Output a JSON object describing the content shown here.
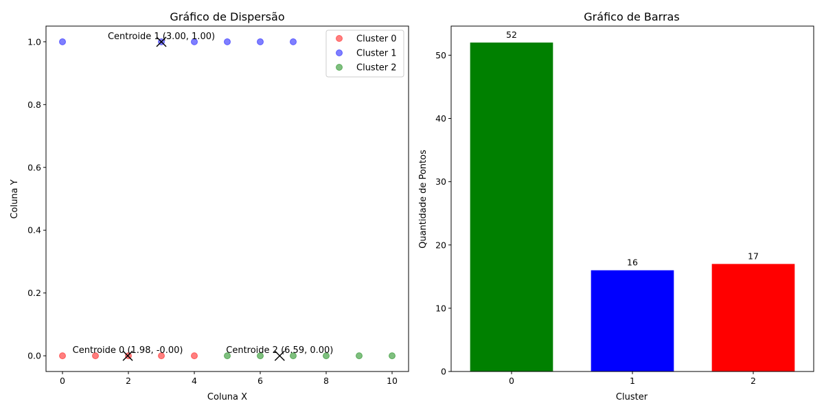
{
  "chart_data": [
    {
      "type": "scatter",
      "title": "Gráfico de Dispersão",
      "xlabel": "Coluna X",
      "ylabel": "Coluna Y",
      "xlim": [
        -0.5,
        10.5
      ],
      "ylim": [
        -0.05,
        1.05
      ],
      "xticks": [
        0,
        2,
        4,
        6,
        8,
        10
      ],
      "yticks": [
        0.0,
        0.2,
        0.4,
        0.6,
        0.8,
        1.0
      ],
      "ytick_labels": [
        "0.0",
        "0.2",
        "0.4",
        "0.6",
        "0.8",
        "1.0"
      ],
      "grid": false,
      "legend_position": "top-right",
      "series": [
        {
          "name": "Cluster 0",
          "color": "#ff0000",
          "alpha": 0.5,
          "points": [
            [
              0,
              0
            ],
            [
              1,
              0
            ],
            [
              2,
              0
            ],
            [
              3,
              0
            ],
            [
              4,
              0
            ]
          ]
        },
        {
          "name": "Cluster 1",
          "color": "#0000ff",
          "alpha": 0.5,
          "points": [
            [
              0,
              1
            ],
            [
              3,
              1
            ],
            [
              4,
              1
            ],
            [
              5,
              1
            ],
            [
              6,
              1
            ],
            [
              7,
              1
            ]
          ]
        },
        {
          "name": "Cluster 2",
          "color": "#008000",
          "alpha": 0.5,
          "points": [
            [
              5,
              0
            ],
            [
              6,
              0
            ],
            [
              7,
              0
            ],
            [
              8,
              0
            ],
            [
              9,
              0
            ],
            [
              10,
              0
            ]
          ]
        }
      ],
      "centroids": [
        {
          "x": 1.98,
          "y": 0.0,
          "label": "Centroide 0 (1.98, -0.00)"
        },
        {
          "x": 3.0,
          "y": 1.0,
          "label": "Centroide 1 (3.00, 1.00)"
        },
        {
          "x": 6.59,
          "y": 0.0,
          "label": "Centroide 2 (6.59, 0.00)"
        }
      ],
      "centroid_marker_color": "#000000"
    },
    {
      "type": "bar",
      "title": "Gráfico de Barras",
      "xlabel": "Cluster",
      "ylabel": "Quantidade de Pontos",
      "categories": [
        "0",
        "1",
        "2"
      ],
      "values": [
        52,
        16,
        17
      ],
      "colors": [
        "#008000",
        "#0000ff",
        "#ff0000"
      ],
      "ylim": [
        0,
        54.6
      ],
      "yticks": [
        0,
        10,
        20,
        30,
        40,
        50
      ],
      "grid": false
    }
  ]
}
